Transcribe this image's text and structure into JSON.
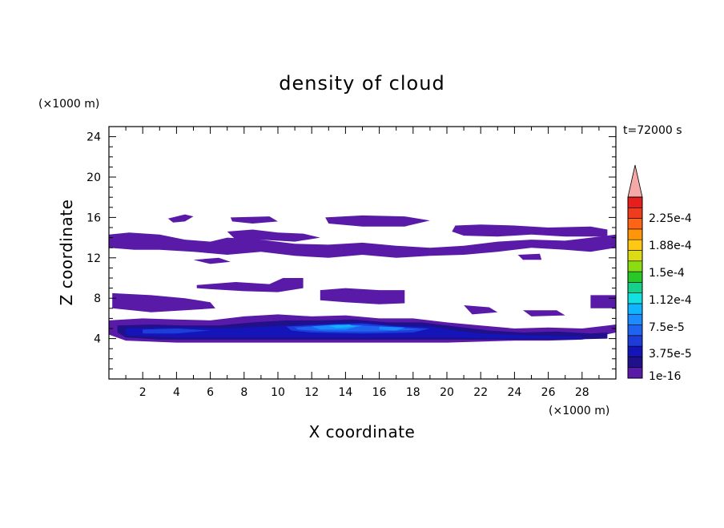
{
  "chart_data": {
    "type": "contour",
    "title": "density of cloud",
    "xlabel": "X coordinate",
    "ylabel": "Z coordinate",
    "x_unit": "(×1000 m)",
    "y_unit": "(×1000 m)",
    "time_label": "t=72000 s",
    "xlim": [
      0,
      30
    ],
    "ylim": [
      0,
      25
    ],
    "xticks": [
      "2",
      "4",
      "6",
      "8",
      "10",
      "12",
      "14",
      "16",
      "18",
      "20",
      "22",
      "24",
      "26",
      "28"
    ],
    "yticks": [
      "4",
      "8",
      "12",
      "16",
      "20",
      "24"
    ],
    "colorbar": {
      "labels": [
        "1e-16",
        "3.75e-5",
        "7.5e-5",
        "1.12e-4",
        "1.5e-4",
        "1.88e-4",
        "2.25e-4"
      ],
      "colors": [
        "#5a1aa8",
        "#20108a",
        "#1414b8",
        "#1e3cd8",
        "#1e64f0",
        "#1a8cff",
        "#10b4ff",
        "#14e0e0",
        "#14d28c",
        "#28c828",
        "#8cdc14",
        "#dcdc14",
        "#ffc814",
        "#ff960a",
        "#ff6414",
        "#f03c1e",
        "#e61e1e"
      ],
      "extend_color": "#f4a8a8"
    },
    "regions": [
      {
        "level": 1,
        "x": [
          0,
          30
        ],
        "z": [
          3.6,
          6.2
        ],
        "desc": "low cloud layer"
      },
      {
        "level": 6,
        "x": [
          11,
          19
        ],
        "z": [
          4.8,
          5.8
        ],
        "desc": "core max"
      },
      {
        "level": 1,
        "x": [
          0,
          30
        ],
        "z": [
          12.2,
          15.2
        ],
        "desc": "upper cloud layer"
      },
      {
        "level": 1,
        "x": [
          0,
          10
        ],
        "z": [
          6.8,
          8.6
        ],
        "desc": "mid cloud"
      }
    ]
  }
}
